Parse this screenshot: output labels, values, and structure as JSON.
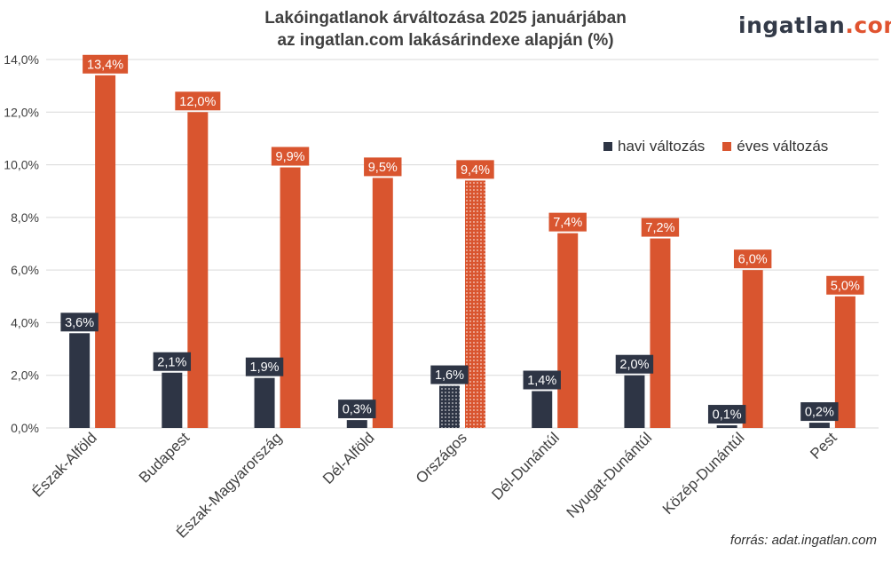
{
  "header": {
    "title_line1": "Lakóingatlanok árváltozása 2025 januárjában",
    "title_line2": "az ingatlan.com lakásárindexe alapján (%)",
    "logo_part1": "ingatlan",
    "logo_part2": ".com"
  },
  "footer": {
    "source": "forrás: adat.ingatlan.com"
  },
  "legend": {
    "monthly": "havi változás",
    "yearly": "éves változás"
  },
  "colors": {
    "monthly": "#2e3545",
    "yearly": "#d9552f",
    "grid": "#d9d9d9",
    "axis_text": "#404040"
  },
  "chart_data": {
    "type": "bar",
    "categories": [
      "Észak-Alföld",
      "Budapest",
      "Észak-Magyarország",
      "Dél-Alföld",
      "Országos",
      "Dél-Dunántúl",
      "Nyugat-Dunántúl",
      "Közép-Dunántúl",
      "Pest"
    ],
    "series": [
      {
        "name": "havi változás",
        "values": [
          3.6,
          2.1,
          1.9,
          0.3,
          1.6,
          1.4,
          2.0,
          0.1,
          0.2
        ],
        "labels": [
          "3,6%",
          "2,1%",
          "1,9%",
          "0,3%",
          "1,6%",
          "1,4%",
          "2,0%",
          "0,1%",
          "0,2%"
        ]
      },
      {
        "name": "éves változás",
        "values": [
          13.4,
          12.0,
          9.9,
          9.5,
          9.4,
          7.4,
          7.2,
          6.0,
          5.0
        ],
        "labels": [
          "13,4%",
          "12,0%",
          "9,9%",
          "9,5%",
          "9,4%",
          "7,4%",
          "7,2%",
          "6,0%",
          "5,0%"
        ]
      }
    ],
    "highlighted_category": "Országos",
    "ylim": [
      0,
      14
    ],
    "yticks": [
      0,
      2,
      4,
      6,
      8,
      10,
      12,
      14
    ],
    "ytick_labels": [
      "0,0%",
      "2,0%",
      "4,0%",
      "6,0%",
      "8,0%",
      "10,0%",
      "12,0%",
      "14,0%"
    ],
    "grid": true,
    "legend_position": "top-right"
  }
}
